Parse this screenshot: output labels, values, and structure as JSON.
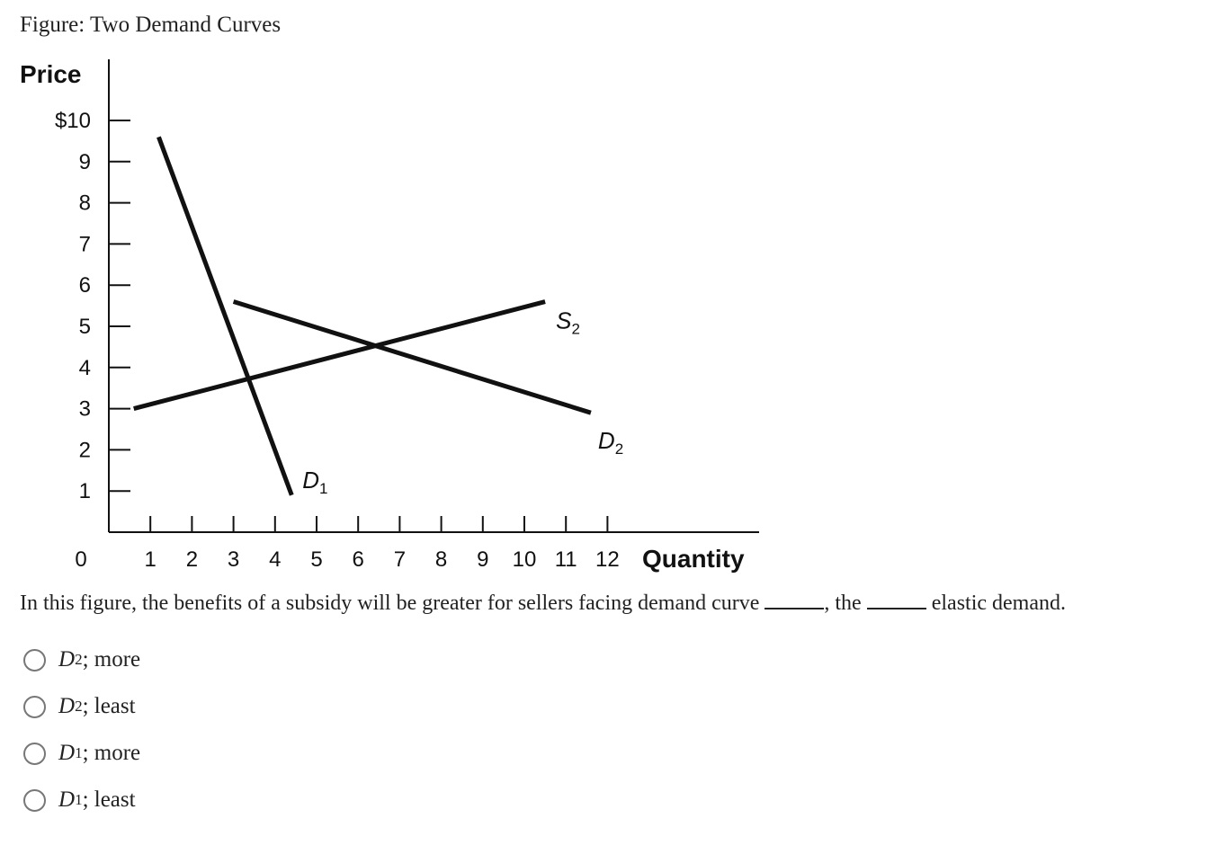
{
  "figure_title": "Figure: Two Demand Curves",
  "question": {
    "part1": "In this figure, the benefits of a subsidy will be greater for sellers facing demand curve",
    "part2": ", the",
    "part3": "elastic demand."
  },
  "options": [
    {
      "curve": "D",
      "sub": "2",
      "rest": "; more"
    },
    {
      "curve": "D",
      "sub": "2",
      "rest": "; least"
    },
    {
      "curve": "D",
      "sub": "1",
      "rest": "; more"
    },
    {
      "curve": "D",
      "sub": "1",
      "rest": "; least"
    }
  ],
  "chart_data": {
    "type": "line",
    "ylabel": "Price",
    "xlabel": "Quantity",
    "xlim": [
      0,
      12
    ],
    "ylim": [
      0,
      10
    ],
    "y_ticks": [
      "$10",
      "9",
      "8",
      "7",
      "6",
      "5",
      "4",
      "3",
      "2",
      "1"
    ],
    "y_tick_values": [
      10,
      9,
      8,
      7,
      6,
      5,
      4,
      3,
      2,
      1
    ],
    "x_ticks": [
      "0",
      "1",
      "2",
      "3",
      "4",
      "5",
      "6",
      "7",
      "8",
      "9",
      "10",
      "11",
      "12"
    ],
    "x_tick_values": [
      0,
      1,
      2,
      3,
      4,
      5,
      6,
      7,
      8,
      9,
      10,
      11,
      12
    ],
    "series": [
      {
        "name": "D1",
        "label": "D",
        "sub": "1",
        "points": [
          [
            1.2,
            9.6
          ],
          [
            4.4,
            0.9
          ]
        ]
      },
      {
        "name": "D2",
        "label": "D",
        "sub": "2",
        "points": [
          [
            3.0,
            5.6
          ],
          [
            11.6,
            2.9
          ]
        ]
      },
      {
        "name": "S2",
        "label": "S",
        "sub": "2",
        "points": [
          [
            0.6,
            3.0
          ],
          [
            10.5,
            5.6
          ]
        ]
      }
    ],
    "colors": {
      "lines": "#111111",
      "axis": "#111111"
    }
  }
}
